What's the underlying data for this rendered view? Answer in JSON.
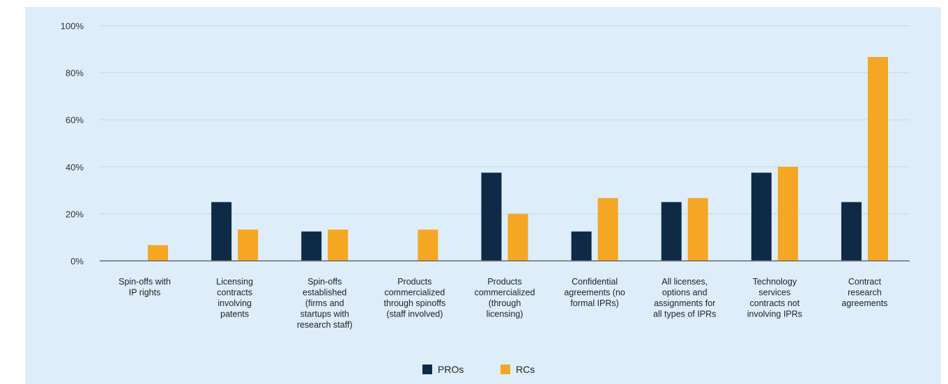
{
  "chart_data": {
    "type": "bar",
    "categories": [
      [
        "Spin-offs with",
        "IP rights"
      ],
      [
        "Licensing",
        "contracts",
        "involving",
        "patents"
      ],
      [
        "Spin-offs",
        "established",
        "(firms and",
        "startups with",
        "research staff)"
      ],
      [
        "Products",
        "commercialized",
        "through spinoffs",
        "(staff involved)"
      ],
      [
        "Products",
        "commercialized",
        "(through",
        "licensing)"
      ],
      [
        "Confidential",
        "agreements (no",
        "formal IPRs)"
      ],
      [
        "All licenses,",
        "options and",
        "assignments for",
        "all types of IPRs"
      ],
      [
        "Technology",
        "services",
        "contracts not",
        "involving IPRs"
      ],
      [
        "Contract",
        "research",
        "agreements"
      ]
    ],
    "series": [
      {
        "name": "PROs",
        "color": "#0e2a47",
        "values": [
          0,
          25,
          12.5,
          0,
          37.5,
          12.5,
          25,
          37.5,
          25
        ]
      },
      {
        "name": "RCs",
        "color": "#f5a623",
        "values": [
          6.7,
          13.3,
          13.3,
          13.3,
          20,
          26.7,
          26.7,
          40,
          86.7
        ]
      }
    ],
    "yticks": [
      "0%",
      "20%",
      "40%",
      "60%",
      "80%",
      "100%"
    ],
    "ylim": [
      0,
      100
    ],
    "grid": true,
    "legend_position": "bottom-center",
    "background_color": "#ddeefa"
  }
}
